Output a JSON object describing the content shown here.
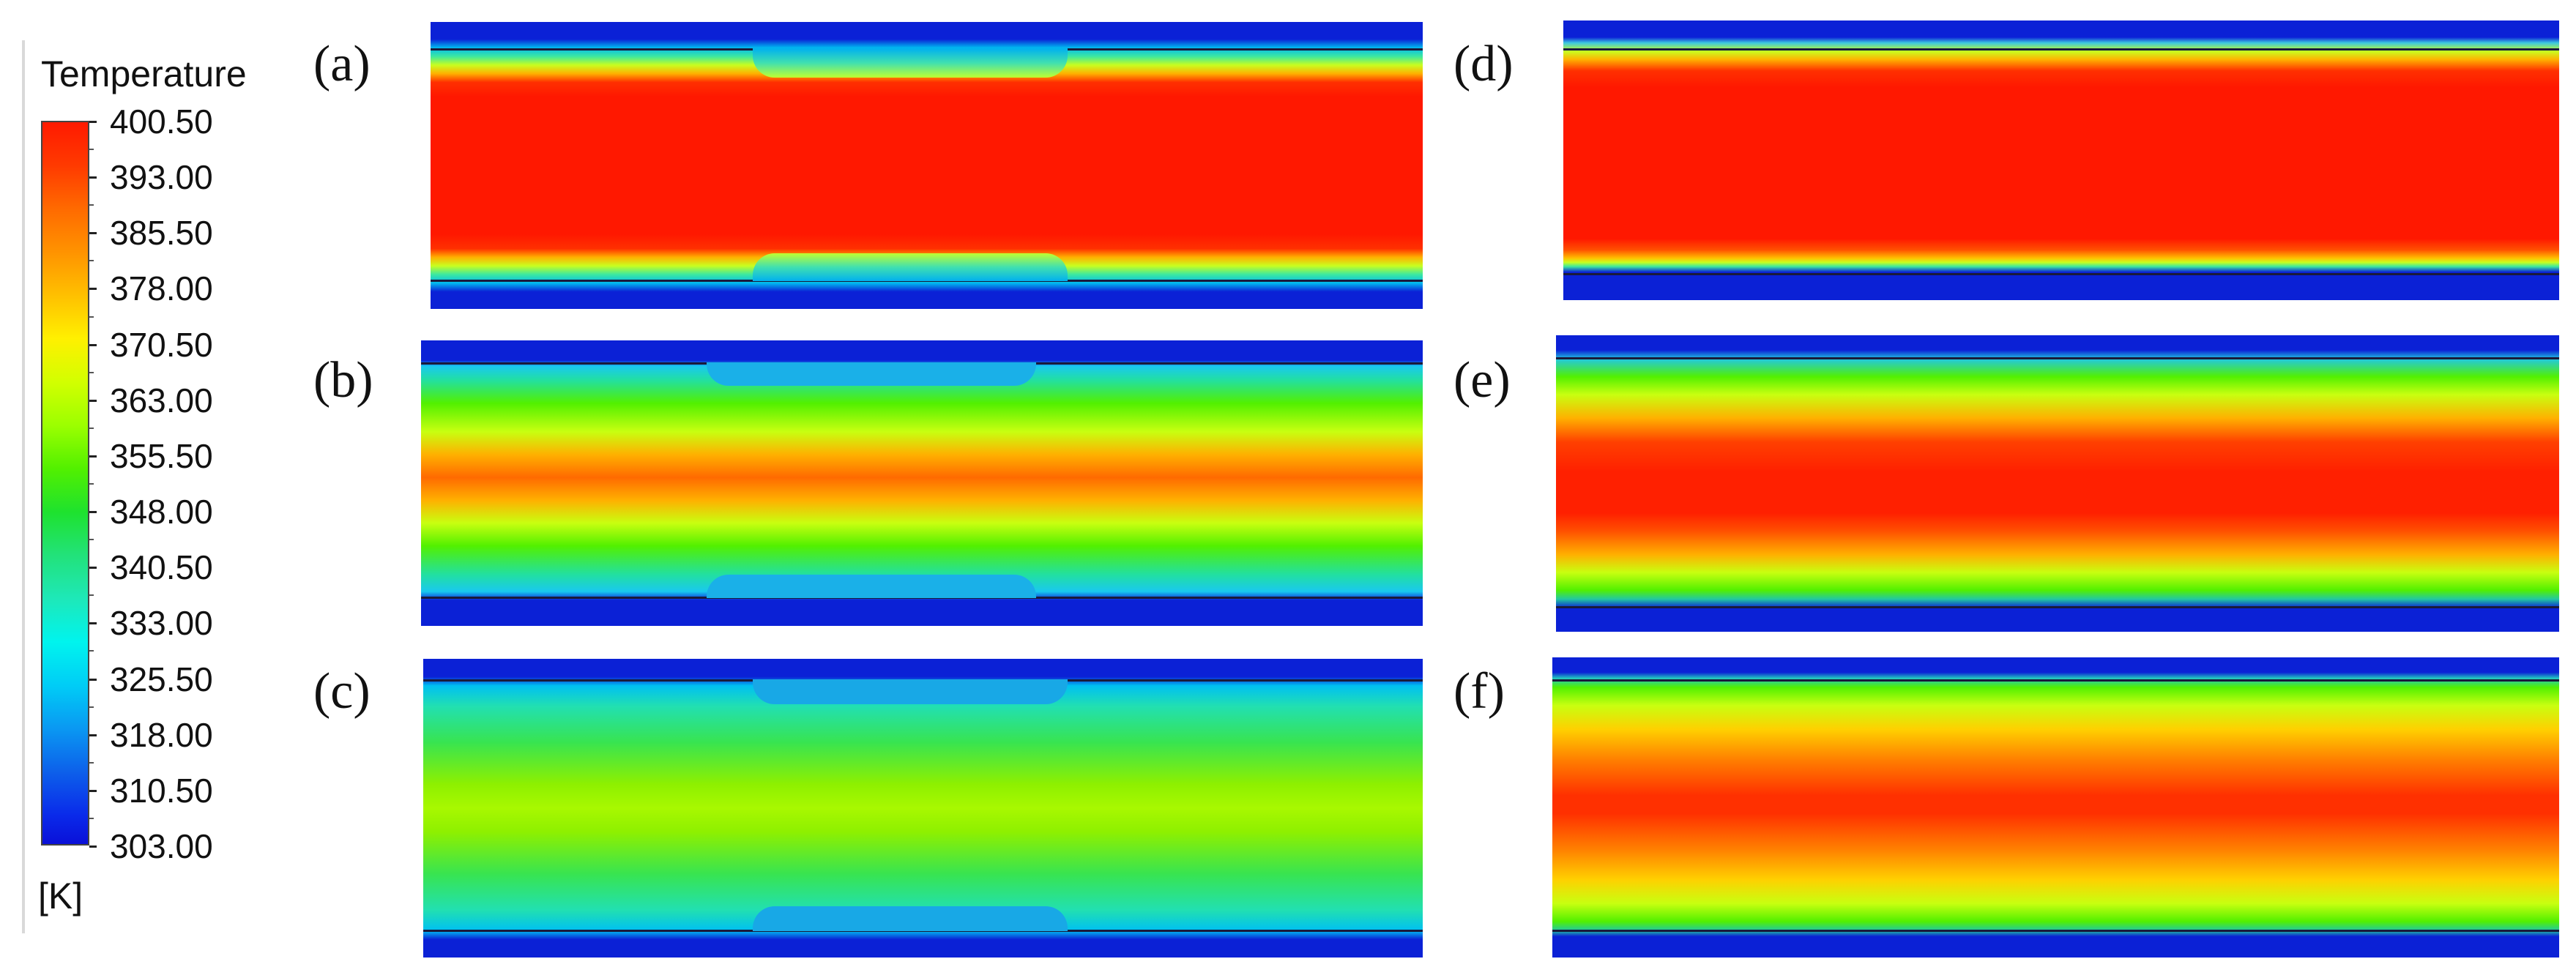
{
  "legend": {
    "title": "Temperature",
    "unit": "[K]",
    "values": [
      "400.50",
      "393.00",
      "385.50",
      "378.00",
      "370.50",
      "363.00",
      "355.50",
      "348.00",
      "340.50",
      "333.00",
      "325.50",
      "318.00",
      "310.50",
      "303.00"
    ]
  },
  "panels": [
    {
      "label": "(a)",
      "core": "hot-narrowed-wall"
    },
    {
      "label": "(b)",
      "core": "banded-with-wall"
    },
    {
      "label": "(c)",
      "core": "cool-green"
    },
    {
      "label": "(d)",
      "core": "hot-uniform"
    },
    {
      "label": "(e)",
      "core": "hot-banded"
    },
    {
      "label": "(f)",
      "core": "hot-parabolic"
    }
  ]
}
